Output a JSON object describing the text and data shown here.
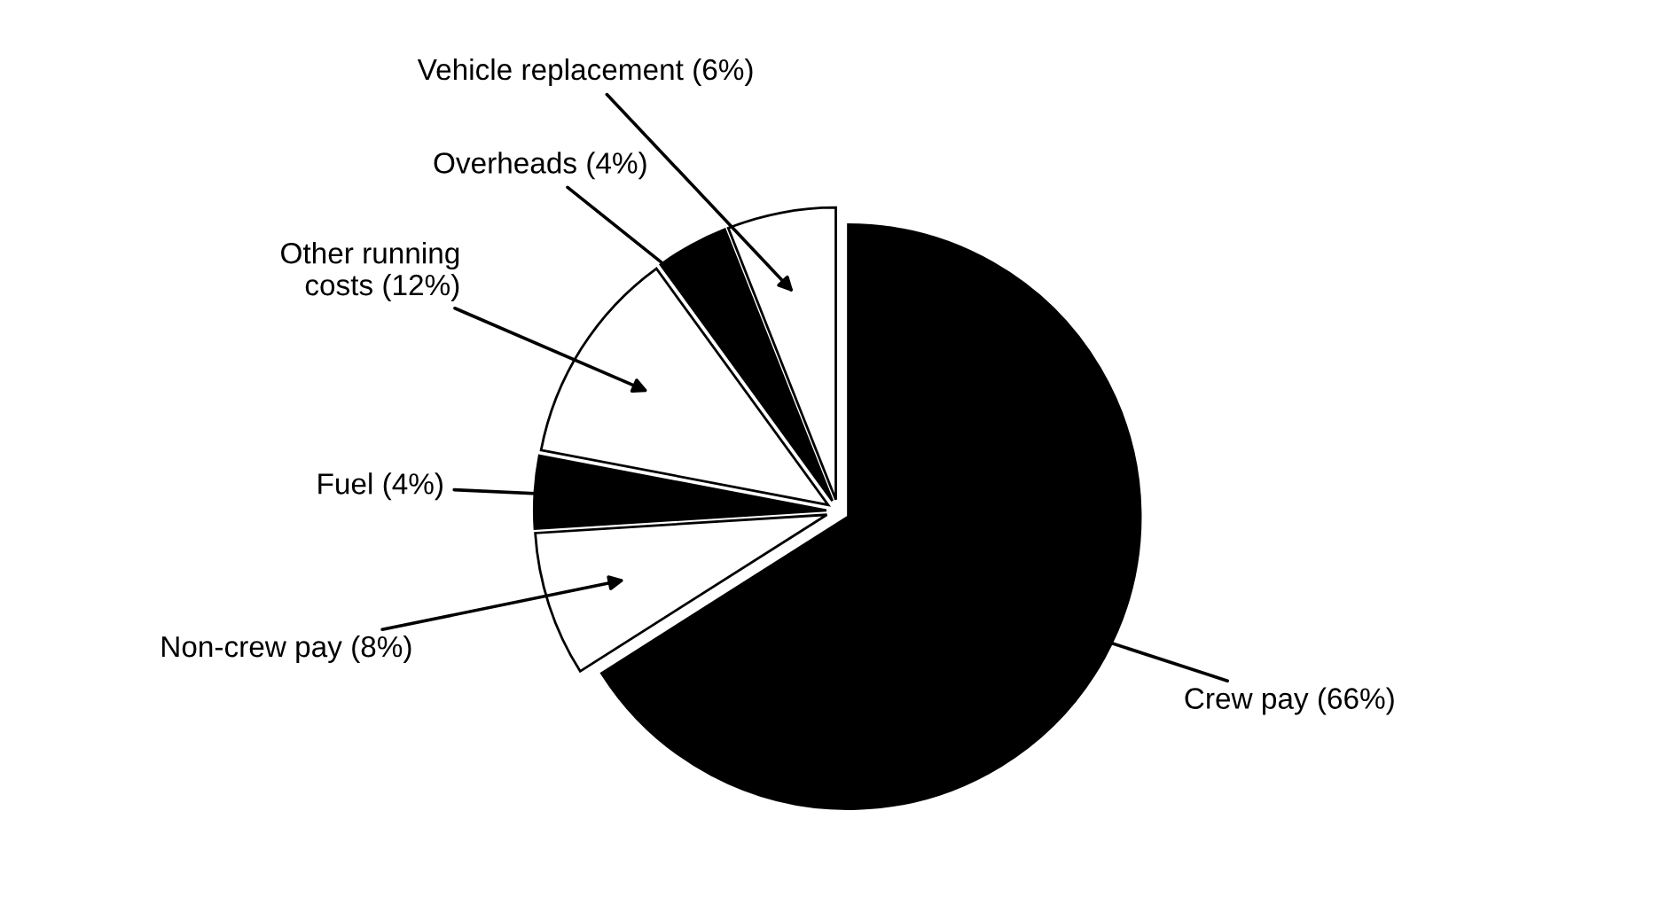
{
  "chart_data": {
    "type": "pie",
    "categories": [
      "Crew pay (66%)",
      "Non-crew pay (8%)",
      "Fuel (4%)",
      "Other running\ncosts (12%)",
      "Overheads (4%)",
      "Vehicle replacement (6%)"
    ],
    "values": [
      66,
      8,
      4,
      12,
      4,
      6
    ],
    "colors": [
      "#000000",
      "#ffffff",
      "#000000",
      "#ffffff",
      "#000000",
      "#ffffff"
    ]
  }
}
